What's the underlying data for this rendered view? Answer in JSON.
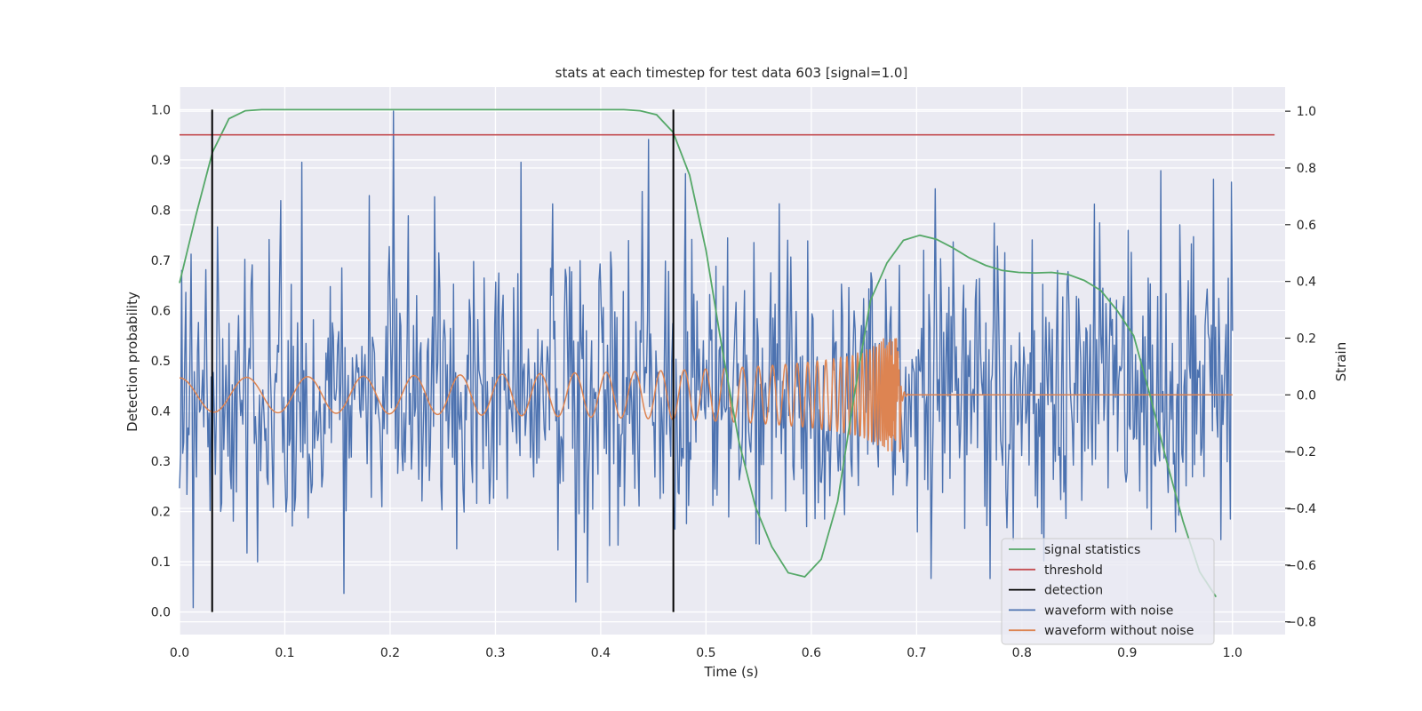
{
  "chart_data": {
    "type": "line",
    "title": "stats at each timestep for test data 603 [signal=1.0]",
    "xlabel": "Time (s)",
    "ylabel_left": "Detection probability",
    "ylabel_right": "Strain",
    "xlim": [
      0.0,
      1.05
    ],
    "ylim_left": [
      -0.045,
      1.045
    ],
    "ylim_right": [
      -0.845,
      1.085
    ],
    "xticks": [
      "0.0",
      "0.1",
      "0.2",
      "0.3",
      "0.4",
      "0.5",
      "0.6",
      "0.7",
      "0.8",
      "0.9",
      "1.0"
    ],
    "yticks_left": [
      "0.0",
      "0.1",
      "0.2",
      "0.3",
      "0.4",
      "0.5",
      "0.6",
      "0.7",
      "0.8",
      "0.9",
      "1.0"
    ],
    "yticks_right": [
      "−0.8",
      "−0.6",
      "−0.4",
      "−0.2",
      "0.0",
      "0.2",
      "0.4",
      "0.6",
      "0.8",
      "1.0"
    ],
    "grid": true,
    "legend_position": "lower-right",
    "colors": {
      "signal_statistics": "#55a868",
      "threshold": "#c44e52",
      "detection": "#000000",
      "waveform_with_noise": "#4c72b0",
      "waveform_without_noise": "#dd8452",
      "background": "#eaeaf2",
      "grid": "#ffffff"
    },
    "series": [
      {
        "name": "signal statistics",
        "axis": "left",
        "x": [
          0.0,
          0.0156,
          0.0312,
          0.0469,
          0.0625,
          0.0781,
          0.0938,
          0.1094,
          0.125,
          0.1406,
          0.1562,
          0.1719,
          0.1875,
          0.2031,
          0.2188,
          0.2344,
          0.25,
          0.2656,
          0.2812,
          0.2969,
          0.3125,
          0.3281,
          0.3438,
          0.3594,
          0.375,
          0.3906,
          0.4062,
          0.4219,
          0.4375,
          0.4531,
          0.4688,
          0.4844,
          0.5,
          0.5156,
          0.5312,
          0.5469,
          0.5625,
          0.5781,
          0.5938,
          0.6094,
          0.625,
          0.6406,
          0.6562,
          0.6719,
          0.6875,
          0.7031,
          0.7188,
          0.7344,
          0.75,
          0.7656,
          0.7812,
          0.7969,
          0.8125,
          0.8281,
          0.8438,
          0.8594,
          0.875,
          0.8906,
          0.9062,
          0.9219,
          0.9375,
          0.9531,
          0.9688,
          0.9844
        ],
        "values": [
          0.655,
          0.79,
          0.915,
          0.982,
          0.998,
          1.0,
          1.0,
          1.0,
          1.0,
          1.0,
          1.0,
          1.0,
          1.0,
          1.0,
          1.0,
          1.0,
          1.0,
          1.0,
          1.0,
          1.0,
          1.0,
          1.0,
          1.0,
          1.0,
          1.0,
          1.0,
          1.0,
          1.0,
          0.998,
          0.99,
          0.955,
          0.87,
          0.72,
          0.52,
          0.34,
          0.21,
          0.13,
          0.078,
          0.07,
          0.105,
          0.22,
          0.43,
          0.62,
          0.695,
          0.74,
          0.75,
          0.742,
          0.725,
          0.705,
          0.69,
          0.68,
          0.676,
          0.675,
          0.676,
          0.672,
          0.66,
          0.64,
          0.6,
          0.55,
          0.43,
          0.3,
          0.18,
          0.08,
          0.03
        ]
      },
      {
        "name": "threshold",
        "axis": "left",
        "x": [
          0.0,
          1.04
        ],
        "values": [
          0.95,
          0.95
        ]
      },
      {
        "name": "detection",
        "axis": "left",
        "events_x": [
          0.031,
          0.469
        ],
        "range": [
          0.0,
          1.0
        ]
      },
      {
        "name": "waveform with noise",
        "axis": "right",
        "x_range": [
          0.0,
          1.0
        ],
        "n_points": 1000,
        "approx_amplitude": [
          -0.7,
          1.0
        ],
        "highlight_points": [
          {
            "x": 0.203,
            "y": 1.0
          },
          {
            "x": 0.445,
            "y": 0.9
          },
          {
            "x": 0.013,
            "y": -0.75
          },
          {
            "x": 0.376,
            "y": -0.73
          },
          {
            "x": 0.982,
            "y": 0.76
          },
          {
            "x": 0.999,
            "y": 0.75
          }
        ]
      },
      {
        "name": "waveform without noise",
        "axis": "right",
        "x_range": [
          0.0,
          1.0
        ],
        "chirp_end": 0.685,
        "approx_amplitude": 0.06,
        "peak_amplitude": 0.2
      }
    ],
    "legend": [
      "signal statistics",
      "threshold",
      "detection",
      "waveform with noise",
      "waveform without noise"
    ]
  }
}
